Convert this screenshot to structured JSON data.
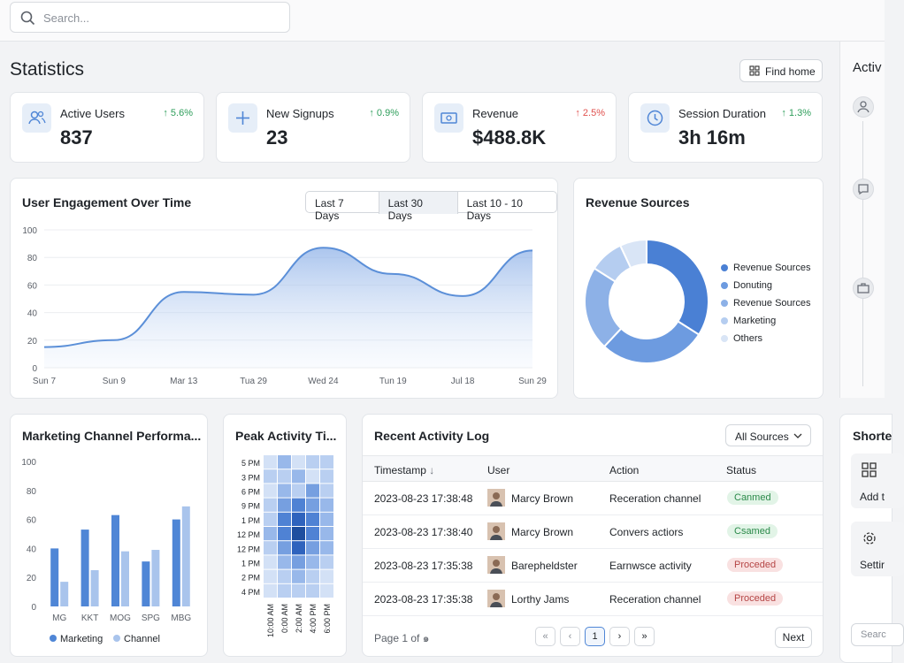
{
  "search": {
    "placeholder": "Search..."
  },
  "page": {
    "title": "Statistics",
    "find_home_label": "Find home"
  },
  "side_panel": {
    "title": "Activ",
    "shortcuts_title": "Shorte",
    "add_label": "Add t",
    "settings_label": "Settir",
    "search_placeholder": "Searc"
  },
  "stats": [
    {
      "label": "Active Users",
      "value": "837",
      "change": "5.6%",
      "direction": "up",
      "icon": "users-icon"
    },
    {
      "label": "New Signups",
      "value": "23",
      "change": "0.9%",
      "direction": "up",
      "icon": "plus-icon"
    },
    {
      "label": "Revenue",
      "value": "$488.8K",
      "change": "2.5%",
      "direction": "down",
      "icon": "money-icon"
    },
    {
      "label": "Session Duration",
      "value": "3h 16m",
      "change": "1.3%",
      "direction": "up",
      "icon": "clock-icon"
    }
  ],
  "engagement": {
    "title": "User Engagement Over Time",
    "ranges": [
      "Last 7 Days",
      "Last 30 Days",
      "Last 10 - 10 Days"
    ],
    "active_range": "Last 30 Days"
  },
  "revenue_sources": {
    "title": "Revenue Sources",
    "legend": [
      "Revenue Sources",
      "Donuting",
      "Revenue Sources",
      "Marketing",
      "Others"
    ]
  },
  "marketing": {
    "title": "Marketing Channel Performa..."
  },
  "peak": {
    "title": "Peak Activity Ti..."
  },
  "activity_log": {
    "title": "Recent Activity Log",
    "filter_label": "All Sources",
    "columns": [
      "Timestamp",
      "User",
      "Action",
      "Status"
    ],
    "rows": [
      {
        "timestamp": "2023-08-23 17:38:48",
        "user": "Marcy Brown",
        "action": "Receration channel",
        "status": "Canmed",
        "status_type": "ok"
      },
      {
        "timestamp": "2023-08-23 17:38:40",
        "user": "Marcy Brown",
        "action": "Convers actiors",
        "status": "Csamed",
        "status_type": "ok"
      },
      {
        "timestamp": "2023-08-23 17:35:38",
        "user": "Barepheldster",
        "action": "Earnwsce activity",
        "status": "Proceded",
        "status_type": "bad"
      },
      {
        "timestamp": "2023-08-23 17:35:38",
        "user": "Lorthy Jams",
        "action": "Receration channel",
        "status": "Proceded",
        "status_type": "bad"
      }
    ],
    "pagination": {
      "info": "Page 1 of ๑",
      "current": "1",
      "next_label": "Next"
    }
  },
  "colors": {
    "accent": "#4f86d6",
    "up": "#2e9e5b",
    "down": "#e0514e"
  },
  "chart_data": [
    {
      "type": "area",
      "title": "User Engagement Over Time",
      "categories": [
        "Sun 7",
        "Sun 9",
        "Mar 13",
        "Tua 29",
        "Wed 24",
        "Tun 19",
        "Jul 18",
        "Sun 29"
      ],
      "values": [
        15,
        20,
        55,
        53,
        87,
        68,
        52,
        85
      ],
      "ylim": [
        0,
        100
      ],
      "yticks": [
        0,
        20,
        40,
        60,
        80,
        100
      ],
      "grid": true
    },
    {
      "type": "pie",
      "title": "Revenue Sources",
      "labels": [
        "Revenue Sources",
        "Donuting",
        "Revenue Sources",
        "Marketing",
        "Others"
      ],
      "values": [
        34,
        28,
        22,
        9,
        7
      ],
      "colors": [
        "#4a80d4",
        "#6d9be0",
        "#8db1e7",
        "#b5cdf0",
        "#d9e5f6"
      ],
      "legend_position": "right"
    },
    {
      "type": "bar",
      "title": "Marketing Channel Performa...",
      "categories": [
        "MG",
        "KKT",
        "MOG",
        "SPG",
        "MBG"
      ],
      "series": [
        {
          "name": "Marketing",
          "values": [
            40,
            53,
            63,
            31,
            60
          ],
          "color": "#4f86d6"
        },
        {
          "name": "Channel",
          "values": [
            17,
            25,
            38,
            39,
            69
          ],
          "color": "#a9c4ec"
        }
      ],
      "ylim": [
        0,
        100
      ],
      "yticks": [
        0,
        20,
        40,
        60,
        80,
        100
      ],
      "legend_position": "bottom"
    },
    {
      "type": "heatmap",
      "title": "Peak Activity Ti...",
      "rows": [
        "5 PM",
        "3 PM",
        "6 PM",
        "9 PM",
        "1 PM",
        "12 PM",
        "12 PM",
        "1 PM",
        "2 PM",
        "4 PM"
      ],
      "columns": [
        "10:00 AM",
        "0:00 AM",
        "2:00 AM",
        "4:00 PM",
        "6:00 PM"
      ],
      "values": [
        [
          1,
          3,
          1,
          2,
          2
        ],
        [
          2,
          2,
          3,
          1,
          2
        ],
        [
          1,
          3,
          2,
          4,
          2
        ],
        [
          2,
          4,
          5,
          4,
          3
        ],
        [
          2,
          5,
          6,
          5,
          3
        ],
        [
          3,
          5,
          7,
          5,
          3
        ],
        [
          2,
          4,
          6,
          4,
          3
        ],
        [
          1,
          3,
          4,
          3,
          2
        ],
        [
          1,
          2,
          3,
          2,
          1
        ],
        [
          1,
          2,
          2,
          2,
          1
        ]
      ]
    }
  ]
}
